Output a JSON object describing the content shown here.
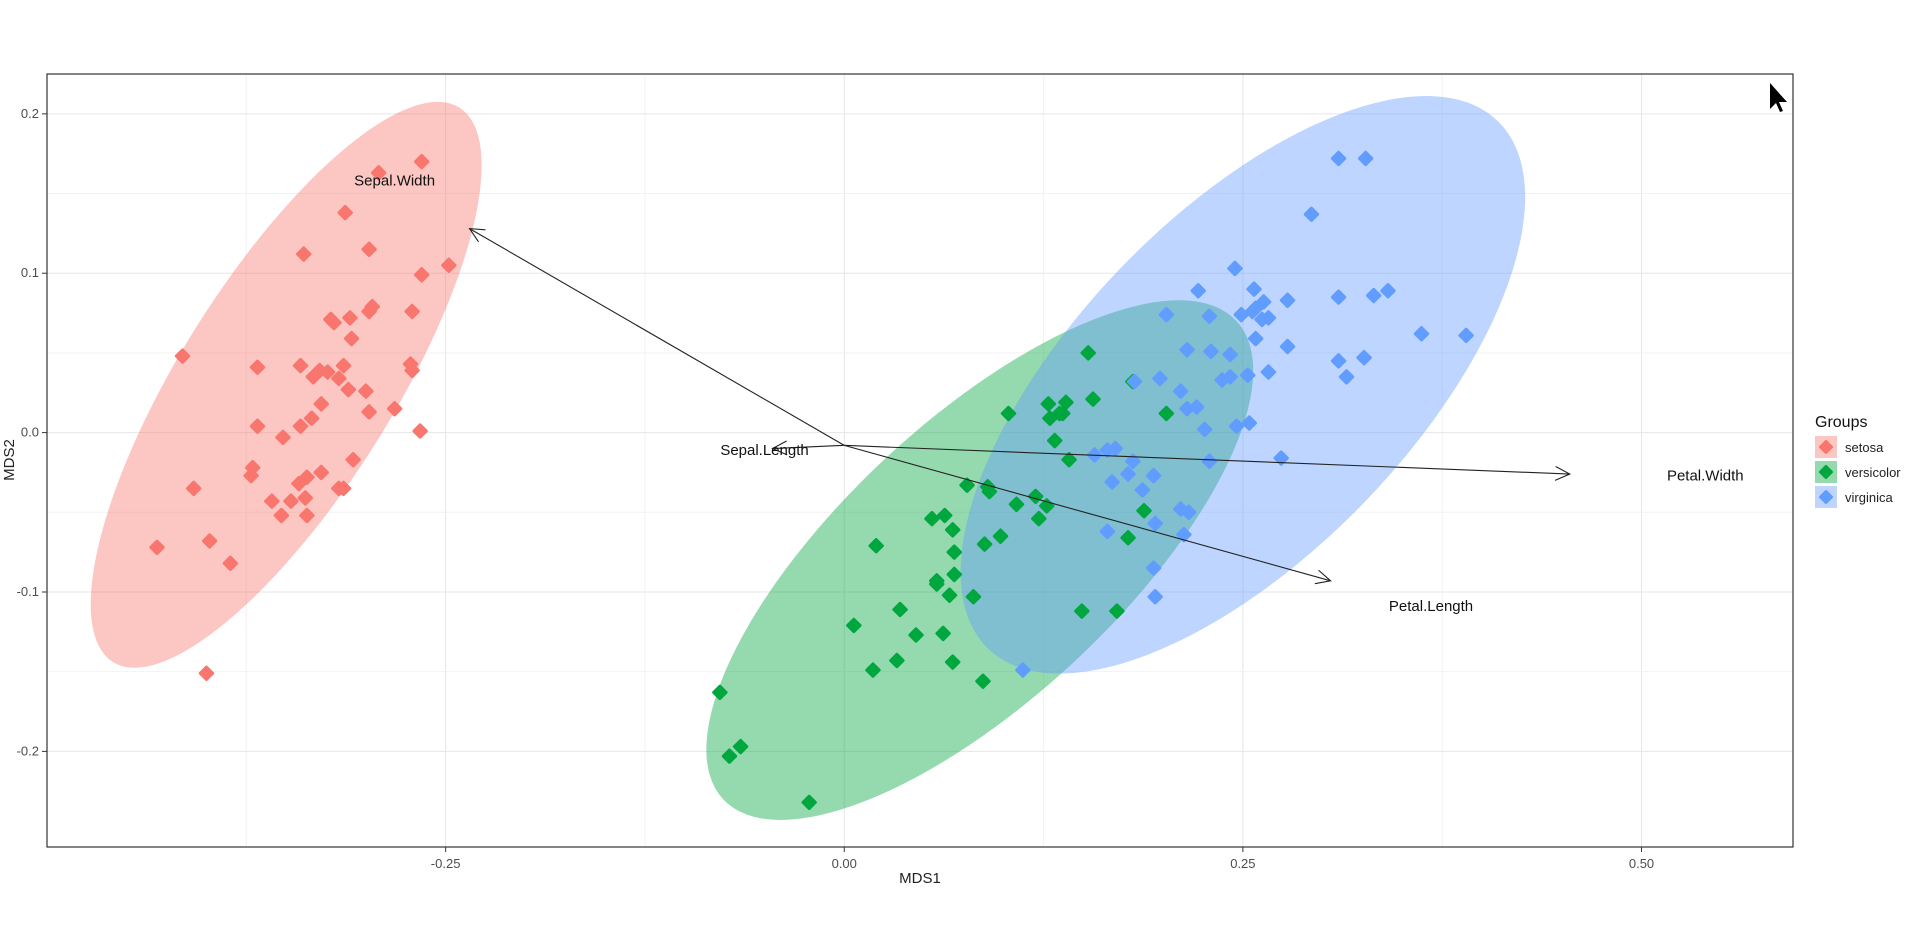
{
  "chart_data": {
    "type": "scatter",
    "xlabel": "MDS1",
    "ylabel": "MDS2",
    "xlim": [
      -0.5,
      0.595
    ],
    "ylim": [
      -0.26,
      0.225
    ],
    "x_ticks": [
      -0.25,
      0.0,
      0.25,
      0.5
    ],
    "x_tick_labels": [
      "-0.25",
      "0.00",
      "0.25",
      "0.50"
    ],
    "y_ticks": [
      -0.2,
      -0.1,
      0.0,
      0.1,
      0.2
    ],
    "y_tick_labels": [
      "-0.2",
      "-0.1",
      "0.0",
      "0.1",
      "0.2"
    ],
    "grid": true,
    "legend": {
      "title": "Groups",
      "position": "right",
      "entries": [
        {
          "label": "setosa",
          "color": "#F8766D"
        },
        {
          "label": "versicolor",
          "color": "#00A63E"
        },
        {
          "label": "virginica",
          "color": "#619CFF"
        }
      ]
    },
    "ellipses": [
      {
        "group": "setosa",
        "cx": -0.35,
        "cy": 0.03,
        "rx": 0.205,
        "ry": 0.067,
        "angle_deg": 58,
        "fill": "#F8766D"
      },
      {
        "group": "versicolor",
        "cx": 0.085,
        "cy": -0.08,
        "rx": 0.22,
        "ry": 0.087,
        "angle_deg": 43,
        "fill": "#00A63E"
      },
      {
        "group": "virginica",
        "cx": 0.25,
        "cy": 0.03,
        "rx": 0.23,
        "ry": 0.106,
        "angle_deg": 46,
        "fill": "#619CFF"
      }
    ],
    "arrows": [
      {
        "label": "Sepal.Width",
        "x0": 0.0,
        "y0": -0.008,
        "x1": -0.235,
        "y1": 0.128,
        "label_x": -0.282,
        "label_y": 0.155
      },
      {
        "label": "Sepal.Length",
        "x0": 0.0,
        "y0": -0.008,
        "x1": -0.045,
        "y1": -0.01,
        "label_x": -0.05,
        "label_y": -0.014
      },
      {
        "label": "Petal.Width",
        "x0": 0.0,
        "y0": -0.008,
        "x1": 0.455,
        "y1": -0.026,
        "label_x": 0.54,
        "label_y": -0.03
      },
      {
        "label": "Petal.Length",
        "x0": 0.0,
        "y0": -0.008,
        "x1": 0.305,
        "y1": -0.093,
        "label_x": 0.368,
        "label_y": -0.112
      }
    ],
    "series": [
      {
        "name": "setosa",
        "color": "#F8766D",
        "points": [
          [
            -0.265,
            0.17
          ],
          [
            -0.292,
            0.163
          ],
          [
            -0.313,
            0.138
          ],
          [
            -0.339,
            0.112
          ],
          [
            -0.298,
            0.115
          ],
          [
            -0.248,
            0.105
          ],
          [
            -0.265,
            0.099
          ],
          [
            -0.296,
            0.079
          ],
          [
            -0.298,
            0.076
          ],
          [
            -0.271,
            0.076
          ],
          [
            -0.322,
            0.071
          ],
          [
            -0.32,
            0.069
          ],
          [
            -0.31,
            0.072
          ],
          [
            -0.309,
            0.059
          ],
          [
            -0.415,
            0.048
          ],
          [
            -0.3,
            0.026
          ],
          [
            -0.272,
            0.043
          ],
          [
            -0.271,
            0.039
          ],
          [
            -0.314,
            0.042
          ],
          [
            -0.341,
            0.042
          ],
          [
            -0.329,
            0.039
          ],
          [
            -0.324,
            0.038
          ],
          [
            -0.333,
            0.035
          ],
          [
            -0.311,
            0.027
          ],
          [
            -0.317,
            0.034
          ],
          [
            -0.368,
            0.041
          ],
          [
            -0.282,
            0.015
          ],
          [
            -0.298,
            0.013
          ],
          [
            -0.328,
            0.018
          ],
          [
            -0.334,
            0.009
          ],
          [
            -0.341,
            0.004
          ],
          [
            -0.368,
            0.004
          ],
          [
            -0.352,
            -0.003
          ],
          [
            -0.266,
            0.001
          ],
          [
            -0.308,
            -0.017
          ],
          [
            -0.371,
            -0.022
          ],
          [
            -0.372,
            -0.027
          ],
          [
            -0.337,
            -0.028
          ],
          [
            -0.328,
            -0.025
          ],
          [
            -0.342,
            -0.032
          ],
          [
            -0.317,
            -0.035
          ],
          [
            -0.408,
            -0.035
          ],
          [
            -0.347,
            -0.043
          ],
          [
            -0.314,
            -0.035
          ],
          [
            -0.338,
            -0.041
          ],
          [
            -0.359,
            -0.043
          ],
          [
            -0.353,
            -0.052
          ],
          [
            -0.337,
            -0.052
          ],
          [
            -0.398,
            -0.068
          ],
          [
            -0.385,
            -0.082
          ],
          [
            -0.431,
            -0.072
          ],
          [
            -0.4,
            -0.151
          ]
        ]
      },
      {
        "name": "versicolor",
        "color": "#00A63E",
        "points": [
          [
            0.153,
            0.05
          ],
          [
            0.103,
            0.012
          ],
          [
            0.128,
            0.018
          ],
          [
            0.139,
            0.019
          ],
          [
            0.156,
            0.021
          ],
          [
            0.135,
            0.012
          ],
          [
            0.129,
            0.009
          ],
          [
            0.181,
            0.032
          ],
          [
            0.202,
            0.012
          ],
          [
            0.137,
            0.012
          ],
          [
            0.132,
            -0.005
          ],
          [
            0.141,
            -0.017
          ],
          [
            0.077,
            -0.033
          ],
          [
            0.09,
            -0.034
          ],
          [
            0.091,
            -0.037
          ],
          [
            0.12,
            -0.04
          ],
          [
            0.127,
            -0.046
          ],
          [
            0.108,
            -0.045
          ],
          [
            0.122,
            -0.054
          ],
          [
            0.098,
            -0.065
          ],
          [
            0.088,
            -0.07
          ],
          [
            0.055,
            -0.054
          ],
          [
            0.063,
            -0.052
          ],
          [
            0.068,
            -0.061
          ],
          [
            0.069,
            -0.075
          ],
          [
            0.02,
            -0.071
          ],
          [
            0.069,
            -0.089
          ],
          [
            0.058,
            -0.093
          ],
          [
            0.058,
            -0.095
          ],
          [
            0.066,
            -0.102
          ],
          [
            0.081,
            -0.103
          ],
          [
            0.035,
            -0.111
          ],
          [
            0.006,
            -0.121
          ],
          [
            0.045,
            -0.127
          ],
          [
            0.062,
            -0.126
          ],
          [
            0.178,
            -0.066
          ],
          [
            0.188,
            -0.049
          ],
          [
            0.171,
            -0.112
          ],
          [
            0.149,
            -0.112
          ],
          [
            0.068,
            -0.144
          ],
          [
            0.018,
            -0.149
          ],
          [
            0.033,
            -0.143
          ],
          [
            0.087,
            -0.156
          ],
          [
            -0.065,
            -0.197
          ],
          [
            -0.072,
            -0.203
          ],
          [
            -0.078,
            -0.163
          ],
          [
            -0.022,
            -0.232
          ]
        ]
      },
      {
        "name": "virginica",
        "color": "#619CFF",
        "points": [
          [
            0.31,
            0.172
          ],
          [
            0.327,
            0.172
          ],
          [
            0.293,
            0.137
          ],
          [
            0.245,
            0.103
          ],
          [
            0.257,
            0.09
          ],
          [
            0.222,
            0.089
          ],
          [
            0.278,
            0.083
          ],
          [
            0.31,
            0.085
          ],
          [
            0.332,
            0.086
          ],
          [
            0.341,
            0.089
          ],
          [
            0.263,
            0.082
          ],
          [
            0.258,
            0.078
          ],
          [
            0.256,
            0.076
          ],
          [
            0.229,
            0.073
          ],
          [
            0.202,
            0.074
          ],
          [
            0.249,
            0.074
          ],
          [
            0.262,
            0.071
          ],
          [
            0.266,
            0.072
          ],
          [
            0.215,
            0.052
          ],
          [
            0.23,
            0.051
          ],
          [
            0.242,
            0.049
          ],
          [
            0.258,
            0.059
          ],
          [
            0.278,
            0.054
          ],
          [
            0.31,
            0.045
          ],
          [
            0.326,
            0.047
          ],
          [
            0.315,
            0.035
          ],
          [
            0.266,
            0.038
          ],
          [
            0.253,
            0.036
          ],
          [
            0.242,
            0.035
          ],
          [
            0.237,
            0.033
          ],
          [
            0.211,
            0.026
          ],
          [
            0.198,
            0.034
          ],
          [
            0.182,
            0.032
          ],
          [
            0.215,
            0.015
          ],
          [
            0.221,
            0.016
          ],
          [
            0.226,
            0.002
          ],
          [
            0.246,
            0.004
          ],
          [
            0.254,
            0.006
          ],
          [
            0.362,
            0.062
          ],
          [
            0.39,
            0.061
          ],
          [
            0.17,
            -0.01
          ],
          [
            0.165,
            -0.011
          ],
          [
            0.181,
            -0.018
          ],
          [
            0.157,
            -0.014
          ],
          [
            0.229,
            -0.018
          ],
          [
            0.274,
            -0.016
          ],
          [
            0.194,
            -0.027
          ],
          [
            0.178,
            -0.026
          ],
          [
            0.168,
            -0.031
          ],
          [
            0.187,
            -0.036
          ],
          [
            0.211,
            -0.048
          ],
          [
            0.216,
            -0.05
          ],
          [
            0.195,
            -0.057
          ],
          [
            0.165,
            -0.062
          ],
          [
            0.213,
            -0.064
          ],
          [
            0.194,
            -0.085
          ],
          [
            0.195,
            -0.103
          ],
          [
            0.112,
            -0.149
          ]
        ]
      }
    ]
  }
}
